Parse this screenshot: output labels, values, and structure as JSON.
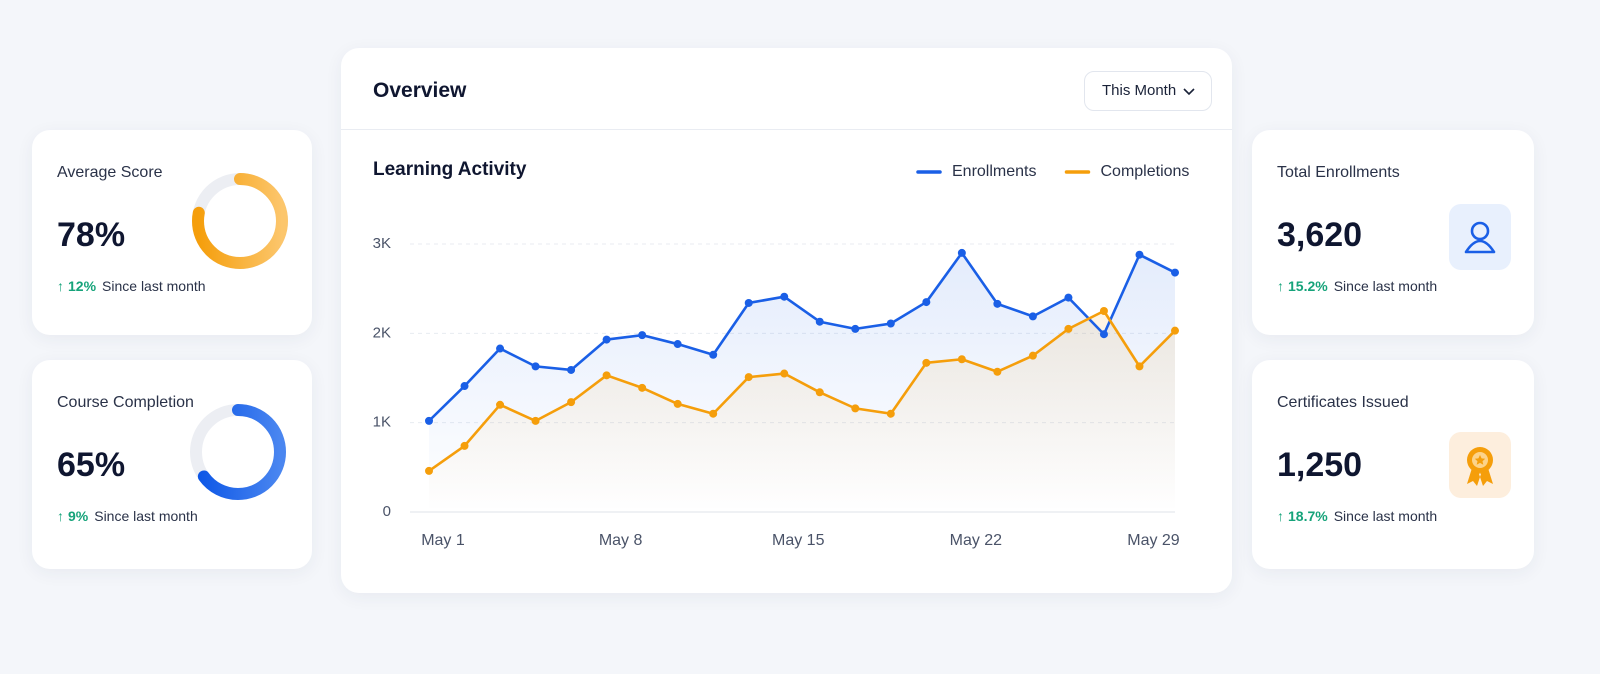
{
  "cards": [
    {
      "title": "Average Score",
      "value": 78,
      "value_label": "78%",
      "change": "12%",
      "change_note": "Since last month"
    },
    {
      "title": "Course Completion",
      "value": 65,
      "value_label": "65%",
      "change": "9%",
      "change_note": "Since last month"
    },
    {
      "title": "Total Enrollments",
      "value": "3,620",
      "change": "15.2%",
      "change_note": "Since last month"
    },
    {
      "title": "Certificates Issued",
      "value": "1,250",
      "change": "18.7%",
      "change_note": "Since last month"
    }
  ],
  "panel": {
    "title": "Overview",
    "period": "This Month"
  },
  "chart_data": {
    "type": "line",
    "title": "Learning Activity",
    "categories": [
      "May 1",
      null,
      null,
      null,
      null,
      "May 8",
      null,
      null,
      null,
      null,
      "May 15",
      null,
      null,
      null,
      null,
      "May 22",
      null,
      null,
      null,
      null,
      "May 29",
      null
    ],
    "series": [
      {
        "name": "Enrollments",
        "color": "#1a5fe6",
        "values": [
          1020,
          1410,
          1830,
          1630,
          1590,
          1930,
          1980,
          1880,
          1760,
          2340,
          2410,
          2130,
          2050,
          2110,
          2350,
          2900,
          2330,
          2190,
          2400,
          1990,
          2880,
          2680
        ]
      },
      {
        "name": "Completions",
        "color": "#f59e0b",
        "values": [
          460,
          740,
          1200,
          1020,
          1230,
          1530,
          1390,
          1210,
          1100,
          1510,
          1550,
          1340,
          1160,
          1100,
          1670,
          1710,
          1570,
          1750,
          2050,
          2250,
          1630,
          2030
        ]
      }
    ],
    "ylim": [
      0,
      3000
    ],
    "yticks": [
      0,
      {
        "value": 1000,
        "label": "1K"
      },
      {
        "value": 2000,
        "label": "2K"
      },
      {
        "value": 3000,
        "label": "3K"
      }
    ],
    "grid": true,
    "legend": "top-right"
  }
}
